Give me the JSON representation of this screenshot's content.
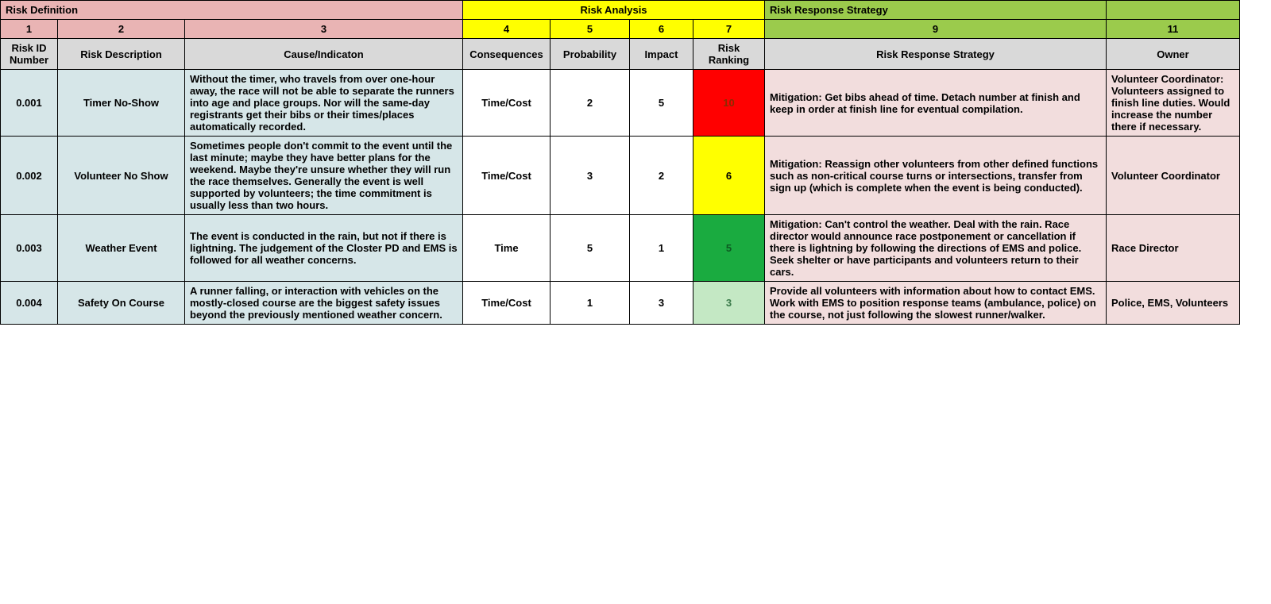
{
  "sections": {
    "definition": "Risk Definition",
    "analysis": "Risk Analysis",
    "response": "Risk Response Strategy"
  },
  "colnums": {
    "c1": "1",
    "c2": "2",
    "c3": "3",
    "c4": "4",
    "c5": "5",
    "c6": "6",
    "c7": "7",
    "c9": "9",
    "c11": "11"
  },
  "headers": {
    "riskId": "Risk ID Number",
    "desc": "Risk Description",
    "cause": "Cause/Indicaton",
    "conseq": "Consequences",
    "prob": "Probability",
    "impact": "Impact",
    "rank": "Risk Ranking",
    "strategy": "Risk Response Strategy",
    "owner": "Owner"
  },
  "colors": {
    "rank_red_bg": "#ff0000",
    "rank_red_fg": "#8b2b00",
    "rank_yellow_bg": "#ffff00",
    "rank_yellow_fg": "#000000",
    "rank_green_bg": "#1aab40",
    "rank_green_fg": "#0d5a22",
    "rank_lightgreen_bg": "#c4e8c4",
    "rank_lightgreen_fg": "#3a7a4a"
  },
  "widths": {
    "w1": 72,
    "w2": 160,
    "w3": 350,
    "w4": 110,
    "w5": 100,
    "w6": 80,
    "w7": 90,
    "w9": 430,
    "w11": 168
  },
  "rows": [
    {
      "id": "0.001",
      "desc": "Timer No-Show",
      "cause": "Without the timer, who travels from over one-hour away, the race will not be able to separate the runners into age and place groups. Nor will the same-day registrants get their bibs or their times/places automatically recorded.",
      "conseq": "Time/Cost",
      "prob": "2",
      "impact": "5",
      "rank": "10",
      "rank_bg": "#ff0000",
      "rank_fg": "#8b2b00",
      "strategy": "Mitigation: Get bibs ahead of time. Detach number at finish and keep in order at finish line for eventual compilation.",
      "owner": "Volunteer Coordinator: Volunteers assigned to finish line duties. Would increase the number there if necessary."
    },
    {
      "id": "0.002",
      "desc": "Volunteer No Show",
      "cause": "Sometimes people don't commit to the event until the last minute; maybe they have better plans for the weekend. Maybe they're unsure whether they will run the race themselves. Generally the event is well supported by volunteers; the time commitment is usually less than two hours.",
      "conseq": "Time/Cost",
      "prob": "3",
      "impact": "2",
      "rank": "6",
      "rank_bg": "#ffff00",
      "rank_fg": "#000000",
      "strategy": "Mitigation: Reassign other volunteers from other defined functions such as non-critical course turns or intersections, transfer from sign up (which is complete when the event is being conducted).",
      "owner": "Volunteer Coordinator"
    },
    {
      "id": "0.003",
      "desc": "Weather Event",
      "cause": "The event is conducted in the rain, but not if there is lightning. The judgement of the Closter PD and EMS is followed for all weather concerns.",
      "conseq": "Time",
      "prob": "5",
      "impact": "1",
      "rank": "5",
      "rank_bg": "#1aab40",
      "rank_fg": "#0d5a22",
      "strategy": "Mitigation: Can't control the weather. Deal with the rain. Race director would announce race postponement or cancellation if there is lightning by following the directions of EMS and police. Seek shelter or have participants and volunteers return to their cars.",
      "owner": "Race Director"
    },
    {
      "id": "0.004",
      "desc": "Safety On Course",
      "cause": "A runner falling, or interaction with vehicles on the mostly-closed course are the biggest safety issues beyond the previously mentioned weather concern.",
      "conseq": "Time/Cost",
      "prob": "1",
      "impact": "3",
      "rank": "3",
      "rank_bg": "#c4e8c4",
      "rank_fg": "#3a7a4a",
      "strategy": "Provide all volunteers with information about how to contact EMS. Work with EMS to position response teams (ambulance, police) on the course, not just following the slowest runner/walker.",
      "owner": "Police, EMS, Volunteers"
    }
  ]
}
